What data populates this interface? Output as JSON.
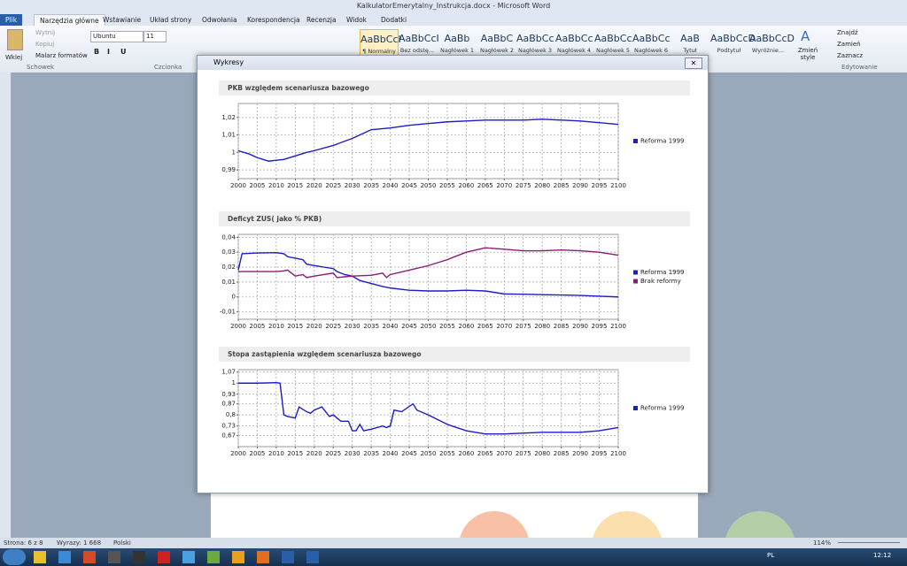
{
  "window": {
    "title": "KalkulatorEmerytalny_Instrukcja.docx - Microsoft Word"
  },
  "ribbon": {
    "tabs": [
      "Plik",
      "Narzędzia główne",
      "Wstawianie",
      "Układ strony",
      "Odwołania",
      "Korespondencja",
      "Recenzja",
      "Widok",
      "Dodatki"
    ],
    "clipboard": {
      "paste": "Wklej",
      "cut": "Wytnij",
      "copy": "Kopiuj",
      "painter": "Malarz formatów"
    },
    "font": {
      "name": "Ubuntu",
      "size": "11"
    },
    "styles": [
      {
        "sample": "AaBbCcI",
        "name": "¶ Normalny"
      },
      {
        "sample": "AaBbCcI",
        "name": "Bez odstę..."
      },
      {
        "sample": "AaBb",
        "name": "Nagłówek 1"
      },
      {
        "sample": "AaBbC",
        "name": "Nagłówek 2"
      },
      {
        "sample": "AaBbCc",
        "name": "Nagłówek 3"
      },
      {
        "sample": "AaBbCc",
        "name": "Nagłówek 4"
      },
      {
        "sample": "AaBbCc",
        "name": "Nagłówek 5"
      },
      {
        "sample": "AaBbCc",
        "name": "Nagłówek 6"
      },
      {
        "sample": "AaB",
        "name": "Tytuł"
      },
      {
        "sample": "AaBbCcD",
        "name": "Podtytuł"
      },
      {
        "sample": "AaBbCcD",
        "name": "Wyróżnie..."
      }
    ],
    "change_styles": "Zmień style",
    "editing": [
      "Znajdź",
      "Zamień",
      "Zaznacz"
    ],
    "groups": [
      "Schowek",
      "Czcionka",
      "Edytowanie"
    ]
  },
  "dialog": {
    "title": "Wykresy"
  },
  "chart_data": [
    {
      "type": "line",
      "title": "PKB względem scenariusza bazowego",
      "x": [
        2000,
        2003,
        2005,
        2008,
        2010,
        2012,
        2015,
        2018,
        2020,
        2025,
        2030,
        2033,
        2035,
        2040,
        2045,
        2050,
        2055,
        2060,
        2065,
        2070,
        2075,
        2080,
        2085,
        2090,
        2095,
        2100
      ],
      "series": [
        {
          "name": "Reforma 1999",
          "color": "#1c1cc8",
          "values": [
            1.001,
            0.999,
            0.997,
            0.995,
            0.9955,
            0.996,
            0.998,
            1.0,
            1.001,
            1.004,
            1.008,
            1.011,
            1.013,
            1.014,
            1.0155,
            1.0165,
            1.0175,
            1.018,
            1.0185,
            1.0185,
            1.0185,
            1.019,
            1.0185,
            1.018,
            1.017,
            1.016
          ]
        }
      ],
      "xlim": [
        2000,
        2100
      ],
      "xticks": [
        2000,
        2005,
        2010,
        2015,
        2020,
        2025,
        2030,
        2035,
        2040,
        2045,
        2050,
        2055,
        2060,
        2065,
        2070,
        2075,
        2080,
        2085,
        2090,
        2095,
        2100
      ],
      "ylim": [
        0.985,
        1.028
      ],
      "yticks": [
        {
          "value": 0.99,
          "label": "0,99"
        },
        1,
        {
          "value": 1.01,
          "label": "1,01"
        },
        {
          "value": 1.02,
          "label": "1,02"
        }
      ],
      "grid": true
    },
    {
      "type": "line",
      "title": "Deficyt ZUS( jako % PKB)",
      "x": [
        2000,
        2001,
        2005,
        2010,
        2012,
        2013,
        2015,
        2017,
        2018,
        2020,
        2025,
        2026,
        2028,
        2030,
        2032,
        2035,
        2038,
        2039,
        2040,
        2045,
        2050,
        2055,
        2060,
        2065,
        2070,
        2075,
        2080,
        2085,
        2090,
        2095,
        2100
      ],
      "series": [
        {
          "name": "Reforma 1999",
          "color": "#1c1cc8",
          "values": [
            0.018,
            0.029,
            0.0295,
            0.0297,
            0.029,
            0.027,
            0.026,
            0.025,
            0.022,
            0.021,
            0.019,
            0.017,
            0.015,
            0.014,
            0.011,
            0.009,
            0.007,
            0.0065,
            0.006,
            0.0045,
            0.004,
            0.004,
            0.0045,
            0.004,
            0.002,
            0.0018,
            0.0015,
            0.0013,
            0.001,
            0.0005,
            0.0
          ]
        },
        {
          "name": "Brak reformy",
          "color": "#8b1a7a",
          "values": [
            0.017,
            0.017,
            0.017,
            0.017,
            0.0175,
            0.018,
            0.014,
            0.015,
            0.013,
            0.014,
            0.016,
            0.013,
            0.0135,
            0.014,
            0.0142,
            0.0145,
            0.016,
            0.013,
            0.015,
            0.018,
            0.021,
            0.025,
            0.03,
            0.033,
            0.032,
            0.031,
            0.031,
            0.0315,
            0.031,
            0.03,
            0.028
          ]
        }
      ],
      "xlim": [
        2000,
        2100
      ],
      "xticks": [
        2000,
        2005,
        2010,
        2015,
        2020,
        2025,
        2030,
        2035,
        2040,
        2045,
        2050,
        2055,
        2060,
        2065,
        2070,
        2075,
        2080,
        2085,
        2090,
        2095,
        2100
      ],
      "ylim": [
        -0.015,
        0.042
      ],
      "yticks": [
        {
          "value": -0.01,
          "label": "-0,01"
        },
        0,
        {
          "value": 0.01,
          "label": "0,01"
        },
        {
          "value": 0.02,
          "label": "0,02"
        },
        {
          "value": 0.03,
          "label": "0,03"
        },
        {
          "value": 0.04,
          "label": "0,04"
        }
      ],
      "grid": true
    },
    {
      "type": "line",
      "title": "Stopa zastąpienia względem scenariusza bazowego",
      "x": [
        2000,
        2005,
        2010,
        2011,
        2012,
        2013,
        2015,
        2016,
        2018,
        2019,
        2020,
        2022,
        2024,
        2025,
        2027,
        2029,
        2030,
        2031,
        2032,
        2033,
        2035,
        2038,
        2039,
        2040,
        2041,
        2043,
        2046,
        2047,
        2050,
        2055,
        2060,
        2065,
        2070,
        2080,
        2090,
        2095,
        2100
      ],
      "series": [
        {
          "name": "Reforma 1999",
          "color": "#1c1cc8",
          "values": [
            1.0,
            1.0,
            1.003,
            1.0,
            0.8,
            0.79,
            0.78,
            0.85,
            0.82,
            0.81,
            0.83,
            0.85,
            0.79,
            0.8,
            0.76,
            0.76,
            0.7,
            0.7,
            0.74,
            0.7,
            0.71,
            0.73,
            0.72,
            0.73,
            0.83,
            0.82,
            0.87,
            0.83,
            0.8,
            0.74,
            0.7,
            0.68,
            0.68,
            0.69,
            0.69,
            0.7,
            0.72
          ]
        }
      ],
      "xlim": [
        2000,
        2100
      ],
      "xticks": [
        2000,
        2005,
        2010,
        2015,
        2020,
        2025,
        2030,
        2035,
        2040,
        2045,
        2050,
        2055,
        2060,
        2065,
        2070,
        2075,
        2080,
        2085,
        2090,
        2095,
        2100
      ],
      "ylim": [
        0.6,
        1.085
      ],
      "yticks": [
        {
          "value": 0.67,
          "label": "0,67"
        },
        {
          "value": 0.73,
          "label": "0,73"
        },
        {
          "value": 0.8,
          "label": "0,8"
        },
        {
          "value": 0.87,
          "label": "0,87"
        },
        {
          "value": 0.93,
          "label": "0,93"
        },
        1,
        {
          "value": 1.07,
          "label": "1,07"
        }
      ],
      "grid": true
    }
  ],
  "status_bar": {
    "page": "Strona: 6 z 8",
    "words": "Wyrazy: 1 668",
    "language": "Polski",
    "zoom": "114%"
  },
  "taskbar": {
    "language": "PL",
    "time": "12:12"
  }
}
